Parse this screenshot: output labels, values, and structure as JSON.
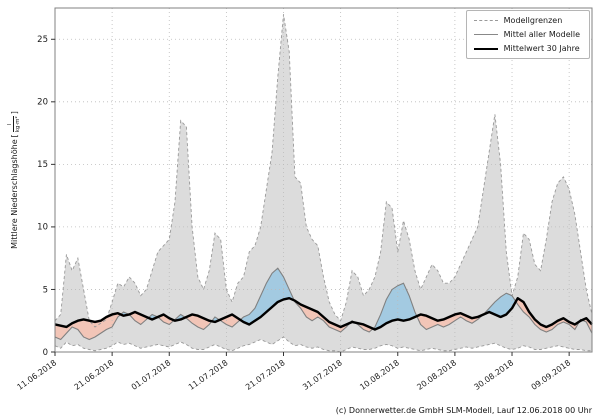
{
  "legend": {
    "items": [
      {
        "label": "Modellgrenzen",
        "style": "dashed-gray"
      },
      {
        "label": "Mittel aller Modelle",
        "style": "solid-gray"
      },
      {
        "label": "Mittelwert 30 Jahre",
        "style": "solid-black-thick"
      }
    ]
  },
  "footer": {
    "credit": "(c) Donnerwetter.de GmbH SLM-Modell, Lauf 12.06.2018 00 Uhr"
  },
  "chart_data": {
    "type": "line",
    "title": "",
    "ylabel": "Mittlere Niederschlagshöhe [l/(kg·m²)]",
    "ylabel_main": "Mittlere Niederschlagshöhe",
    "ylabel_unit_numerator": "l",
    "ylabel_unit_denominator": "kg·m²",
    "xlabel": "",
    "ylim": [
      0,
      27.5
    ],
    "y_ticks": [
      0,
      5,
      10,
      15,
      20,
      25
    ],
    "x_tick_labels": [
      "11.06.2018",
      "21.06.2018",
      "01.07.2018",
      "11.07.2018",
      "21.07.2018",
      "31.07.2018",
      "10.08.2018",
      "20.08.2018",
      "30.08.2018",
      "09.09.2018"
    ],
    "x_tick_days": [
      0,
      10,
      20,
      30,
      40,
      50,
      60,
      70,
      80,
      90
    ],
    "x_range_days": [
      0,
      94
    ],
    "grid": "dotted",
    "legend_position": "upper right",
    "colors": {
      "band_fill": "#dcdcdc",
      "band_edge": "#999999",
      "model_mean_line": "#808080",
      "climate_line": "#000000",
      "above_fill": "#9fc8e0",
      "below_fill": "#f2c3b4",
      "grid": "#bbbbbb",
      "spine": "#808080"
    },
    "series": [
      {
        "name": "Modellgrenzen (obere Grenze)",
        "role": "upper",
        "values": [
          2.5,
          3.0,
          7.8,
          6.5,
          7.5,
          5.0,
          2.5,
          2.0,
          2.3,
          2.6,
          4.0,
          5.5,
          5.2,
          6.0,
          5.5,
          4.5,
          5.0,
          6.5,
          8.0,
          8.5,
          9.0,
          12.0,
          18.5,
          18.0,
          10.0,
          6.0,
          5.0,
          6.5,
          9.5,
          9.0,
          5.0,
          4.0,
          5.5,
          6.0,
          8.0,
          8.5,
          10.0,
          13.0,
          16.0,
          22.0,
          27.0,
          24.0,
          14.0,
          13.5,
          10.0,
          9.0,
          8.5,
          6.0,
          4.0,
          3.0,
          2.5,
          4.0,
          6.5,
          6.0,
          4.5,
          5.0,
          6.0,
          8.0,
          12.0,
          11.5,
          8.0,
          10.5,
          9.0,
          6.5,
          5.0,
          6.0,
          7.0,
          6.5,
          5.5,
          5.5,
          6.0,
          7.0,
          8.0,
          9.0,
          10.0,
          13.0,
          16.0,
          19.0,
          15.0,
          8.0,
          4.5,
          6.0,
          9.5,
          9.0,
          7.0,
          6.5,
          9.0,
          12.0,
          13.5,
          14.0,
          13.0,
          11.0,
          8.0,
          5.0,
          3.0
        ]
      },
      {
        "name": "Modellgrenzen (untere Grenze)",
        "role": "lower",
        "values": [
          0.5,
          0.3,
          0.8,
          0.5,
          0.6,
          0.3,
          0.2,
          0.1,
          0.2,
          0.3,
          0.5,
          0.8,
          0.6,
          0.7,
          0.5,
          0.3,
          0.4,
          0.5,
          0.6,
          0.5,
          0.4,
          0.6,
          0.8,
          0.6,
          0.3,
          0.2,
          0.2,
          0.4,
          0.6,
          0.4,
          0.2,
          0.1,
          0.3,
          0.5,
          0.6,
          0.8,
          1.0,
          0.8,
          0.6,
          0.9,
          1.2,
          0.8,
          0.5,
          0.6,
          0.4,
          0.3,
          0.4,
          0.2,
          0.1,
          0.1,
          0.0,
          0.2,
          0.4,
          0.3,
          0.2,
          0.2,
          0.3,
          0.5,
          0.6,
          0.5,
          0.3,
          0.4,
          0.3,
          0.2,
          0.1,
          0.2,
          0.3,
          0.2,
          0.1,
          0.1,
          0.2,
          0.3,
          0.4,
          0.3,
          0.4,
          0.5,
          0.6,
          0.7,
          0.5,
          0.3,
          0.2,
          0.3,
          0.5,
          0.4,
          0.2,
          0.2,
          0.3,
          0.4,
          0.5,
          0.4,
          0.3,
          0.2,
          0.2,
          0.1,
          0.1
        ]
      },
      {
        "name": "Mittel aller Modelle",
        "role": "model_mean",
        "values": [
          1.2,
          1.0,
          1.5,
          2.0,
          1.8,
          1.2,
          1.0,
          1.2,
          1.5,
          1.8,
          2.0,
          2.8,
          3.2,
          3.0,
          2.5,
          2.2,
          2.6,
          3.0,
          2.8,
          2.4,
          2.2,
          2.6,
          3.0,
          2.7,
          2.3,
          2.0,
          1.8,
          2.2,
          2.8,
          2.5,
          2.2,
          2.0,
          2.4,
          2.8,
          3.0,
          3.5,
          4.5,
          5.5,
          6.3,
          6.7,
          6.0,
          5.0,
          4.0,
          3.5,
          2.8,
          2.5,
          2.8,
          2.5,
          2.0,
          1.8,
          1.6,
          2.0,
          2.5,
          2.2,
          1.8,
          1.6,
          2.0,
          3.0,
          4.2,
          5.0,
          5.3,
          5.5,
          4.5,
          3.2,
          2.2,
          1.8,
          2.0,
          2.2,
          2.0,
          2.2,
          2.5,
          2.8,
          2.5,
          2.3,
          2.6,
          3.0,
          3.5,
          4.0,
          4.4,
          4.7,
          4.5,
          3.8,
          3.2,
          2.8,
          2.2,
          1.8,
          1.6,
          1.8,
          2.2,
          2.4,
          2.2,
          1.8,
          2.6,
          2.4,
          1.5
        ]
      },
      {
        "name": "Mittelwert 30 Jahre",
        "role": "climate_mean_30y",
        "values": [
          2.2,
          2.1,
          2.0,
          2.3,
          2.5,
          2.6,
          2.5,
          2.4,
          2.5,
          2.8,
          3.0,
          3.1,
          2.9,
          3.0,
          3.2,
          3.0,
          2.8,
          2.6,
          2.8,
          3.0,
          2.7,
          2.5,
          2.6,
          2.8,
          3.0,
          2.9,
          2.7,
          2.5,
          2.4,
          2.6,
          2.8,
          3.0,
          2.7,
          2.4,
          2.2,
          2.5,
          2.8,
          3.2,
          3.6,
          4.0,
          4.2,
          4.3,
          4.1,
          3.8,
          3.6,
          3.4,
          3.2,
          2.8,
          2.4,
          2.2,
          2.0,
          2.2,
          2.4,
          2.3,
          2.2,
          2.0,
          1.8,
          2.0,
          2.3,
          2.5,
          2.6,
          2.5,
          2.6,
          2.8,
          3.0,
          2.9,
          2.7,
          2.5,
          2.6,
          2.8,
          3.0,
          3.1,
          2.9,
          2.7,
          2.8,
          3.0,
          3.2,
          3.0,
          2.8,
          3.0,
          3.5,
          4.3,
          4.0,
          3.2,
          2.6,
          2.2,
          2.0,
          2.2,
          2.5,
          2.7,
          2.4,
          2.2,
          2.5,
          2.7,
          2.2
        ]
      }
    ]
  }
}
